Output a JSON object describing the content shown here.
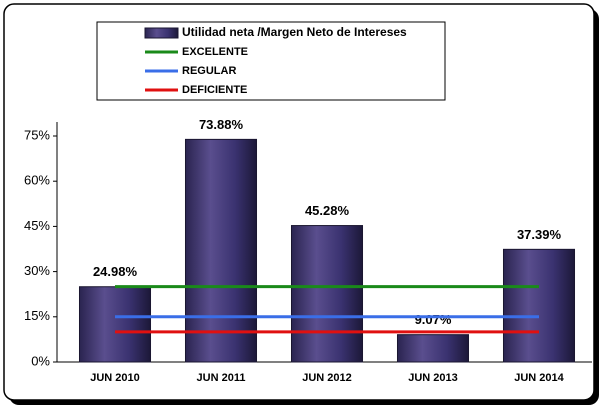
{
  "chart_data": {
    "type": "bar",
    "categories": [
      "JUN 2010",
      "JUN 2011",
      "JUN 2012",
      "JUN 2013",
      "JUN 2014"
    ],
    "series": [
      {
        "name": "Utilidad neta /Margen Neto de Intereses",
        "type": "bar",
        "color": "#3f3670",
        "values": [
          24.98,
          73.88,
          45.28,
          9.07,
          37.39
        ],
        "value_labels": [
          "24.98%",
          "73.88%",
          "45.28%",
          "9.07%",
          "37.39%"
        ]
      },
      {
        "name": "EXCELENTE",
        "type": "line",
        "color": "#1a8a1a",
        "values": [
          25,
          25,
          25,
          25,
          25
        ]
      },
      {
        "name": "REGULAR",
        "type": "line",
        "color": "#3a6ee8",
        "values": [
          15,
          15,
          15,
          15,
          15
        ]
      },
      {
        "name": "DEFICIENTE",
        "type": "line",
        "color": "#e01010",
        "values": [
          10,
          10,
          10,
          10,
          10
        ]
      }
    ],
    "ylim": [
      0,
      75
    ],
    "yticks": [
      {
        "value": 0,
        "label": "0%"
      },
      {
        "value": 15,
        "label": "15%"
      },
      {
        "value": 30,
        "label": "30%"
      },
      {
        "value": 45,
        "label": "45%"
      },
      {
        "value": 60,
        "label": "60%"
      },
      {
        "value": 75,
        "label": "75%"
      }
    ]
  }
}
